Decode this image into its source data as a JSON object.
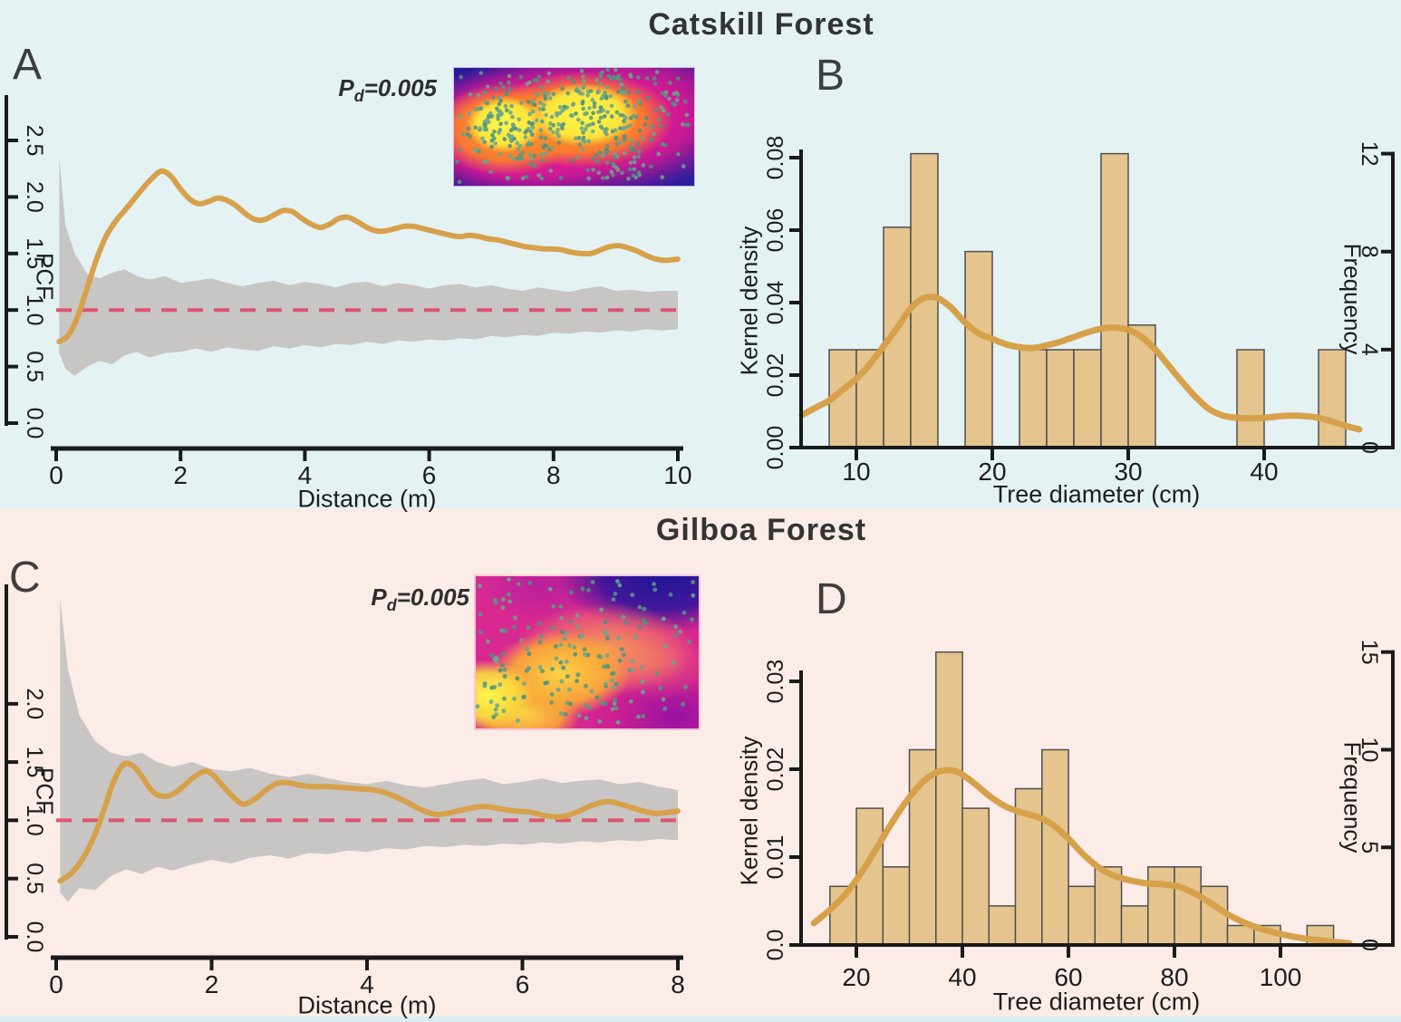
{
  "figure": {
    "top": {
      "title": "Catskill Forest",
      "bg": "#e4f2f4"
    },
    "bottom": {
      "title": "Gilboa Forest",
      "bg": "#fbece8"
    },
    "bottom_strip_color": "#d9eef3"
  },
  "colors": {
    "curve": "#d7a14b",
    "envelope": "#c7c6c4",
    "ref_line": "#dd5470",
    "bar_fill": "#e5c48e",
    "bar_stroke": "#4f4f4f",
    "axis": "#1a1a1a",
    "tick_text": "#1d1d1d",
    "inset_navy": "#1e1696",
    "inset_magenta": "#e0218f",
    "inset_orange": "#fb9b2e",
    "inset_yellow": "#fdf64c",
    "inset_yellow2": "#fce53c",
    "inset_purple": "#8a14a0",
    "inset_dots": [
      "#57987f",
      "#67a98e",
      "#4f8f80",
      "#6ba487"
    ]
  },
  "chart_data": [
    {
      "id": "A",
      "type": "line",
      "panel_label": "A",
      "forest": "Catskill Forest",
      "xlabel": "Distance (m)",
      "ylabel": "PCF",
      "xlim": [
        0,
        10
      ],
      "ylim": [
        0.0,
        2.5
      ],
      "xticks": [
        "0",
        "2",
        "4",
        "6",
        "8",
        "10"
      ],
      "xtick_values": [
        0,
        2,
        4,
        6,
        8,
        10
      ],
      "yticks": [
        "0.0",
        "0.5",
        "1.0",
        "1.5",
        "2.0",
        "2.5"
      ],
      "ytick_values": [
        0,
        0.5,
        1,
        1.5,
        2,
        2.5
      ],
      "reference_line_y": 1.0,
      "annotation": {
        "p": "P",
        "sub": "d",
        "value": "=0.005"
      },
      "pcf_curve": {
        "x": [
          0.05,
          0.2,
          0.35,
          0.5,
          0.65,
          0.8,
          0.95,
          1.1,
          1.25,
          1.4,
          1.55,
          1.7,
          1.85,
          2.0,
          2.15,
          2.3,
          2.45,
          2.6,
          2.75,
          2.9,
          3.05,
          3.2,
          3.35,
          3.5,
          3.65,
          3.8,
          3.95,
          4.1,
          4.25,
          4.4,
          4.55,
          4.7,
          4.85,
          5.0,
          5.15,
          5.3,
          5.45,
          5.6,
          5.75,
          5.9,
          6.05,
          6.2,
          6.35,
          6.5,
          6.65,
          6.8,
          6.95,
          7.1,
          7.25,
          7.4,
          7.55,
          7.7,
          7.85,
          8.0,
          8.15,
          8.3,
          8.45,
          8.6,
          8.75,
          8.9,
          9.05,
          9.2,
          9.35,
          9.5,
          9.65,
          9.8,
          10.0
        ],
        "y": [
          0.72,
          0.78,
          0.95,
          1.2,
          1.45,
          1.65,
          1.78,
          1.88,
          1.98,
          2.08,
          2.17,
          2.23,
          2.18,
          2.07,
          1.98,
          1.94,
          1.96,
          1.99,
          1.97,
          1.92,
          1.85,
          1.8,
          1.8,
          1.84,
          1.88,
          1.87,
          1.81,
          1.76,
          1.73,
          1.76,
          1.81,
          1.82,
          1.78,
          1.73,
          1.7,
          1.7,
          1.72,
          1.74,
          1.74,
          1.72,
          1.7,
          1.68,
          1.66,
          1.65,
          1.66,
          1.65,
          1.63,
          1.62,
          1.6,
          1.58,
          1.56,
          1.55,
          1.54,
          1.54,
          1.53,
          1.51,
          1.5,
          1.5,
          1.53,
          1.56,
          1.57,
          1.55,
          1.52,
          1.48,
          1.45,
          1.44,
          1.45
        ]
      },
      "envelope": {
        "x": [
          0.05,
          0.15,
          0.3,
          0.5,
          0.7,
          0.9,
          1.1,
          1.3,
          1.5,
          1.75,
          2.0,
          2.25,
          2.5,
          2.75,
          3.0,
          3.25,
          3.5,
          3.75,
          4.0,
          4.25,
          4.5,
          4.75,
          5.0,
          5.25,
          5.5,
          5.75,
          6.0,
          6.25,
          6.5,
          6.75,
          7.0,
          7.25,
          7.5,
          7.75,
          8.0,
          8.25,
          8.5,
          8.75,
          9.0,
          9.25,
          9.5,
          9.75,
          10.0
        ],
        "upper": [
          2.35,
          1.75,
          1.5,
          1.32,
          1.28,
          1.33,
          1.36,
          1.3,
          1.27,
          1.3,
          1.24,
          1.26,
          1.28,
          1.24,
          1.21,
          1.24,
          1.26,
          1.22,
          1.25,
          1.23,
          1.2,
          1.24,
          1.25,
          1.21,
          1.24,
          1.22,
          1.19,
          1.22,
          1.23,
          1.2,
          1.22,
          1.19,
          1.17,
          1.2,
          1.18,
          1.16,
          1.19,
          1.21,
          1.17,
          1.18,
          1.16,
          1.17,
          1.17
        ],
        "lower": [
          0.62,
          0.48,
          0.42,
          0.5,
          0.55,
          0.52,
          0.6,
          0.63,
          0.58,
          0.62,
          0.63,
          0.66,
          0.63,
          0.67,
          0.65,
          0.64,
          0.68,
          0.66,
          0.69,
          0.67,
          0.7,
          0.69,
          0.72,
          0.7,
          0.73,
          0.72,
          0.74,
          0.73,
          0.75,
          0.74,
          0.77,
          0.76,
          0.78,
          0.77,
          0.8,
          0.79,
          0.81,
          0.8,
          0.82,
          0.81,
          0.83,
          0.82,
          0.83
        ]
      },
      "inset": {
        "type": "point-density-map",
        "hotspots": "two yellow clusters left and center, navy background, magenta halo",
        "dot_color": "teal-green"
      }
    },
    {
      "id": "B",
      "type": "bar",
      "panel_label": "B",
      "forest": "Catskill Forest",
      "xlabel": "Tree diameter (cm)",
      "ylabel_left": "Kernel  density",
      "ylabel_right": "Frequency",
      "xlim": [
        6,
        47
      ],
      "ylim_density": [
        0.0,
        0.08
      ],
      "ylim_frequency": [
        0,
        12
      ],
      "xticks": [
        "10",
        "20",
        "30",
        "40"
      ],
      "xtick_values": [
        10,
        20,
        30,
        40
      ],
      "yticks_left": [
        "0.00",
        "0.02",
        "0.04",
        "0.06",
        "0.08"
      ],
      "ytick_left_values": [
        0,
        0.02,
        0.04,
        0.06,
        0.08
      ],
      "yticks_right": [
        "0",
        "4",
        "8",
        "12"
      ],
      "ytick_right_values": [
        0,
        4,
        8,
        12
      ],
      "histogram": {
        "bin_start": 8,
        "bin_width": 2,
        "frequencies": [
          4,
          4,
          9,
          12,
          0,
          8,
          0,
          4,
          4,
          4,
          12,
          5,
          0,
          0,
          0,
          4,
          0,
          0,
          4
        ],
        "densities": [
          0.027,
          0.027,
          0.0608,
          0.0811,
          0,
          0.0541,
          0,
          0.027,
          0.027,
          0.027,
          0.0811,
          0.0338,
          0,
          0,
          0,
          0.027,
          0,
          0,
          0.027
        ]
      },
      "kde_curve": {
        "x": [
          6,
          7,
          8,
          9,
          10,
          11,
          12,
          13,
          14,
          15,
          16,
          17,
          18,
          19,
          20,
          21,
          22,
          23,
          24,
          25,
          26,
          27,
          28,
          29,
          30,
          31,
          32,
          33,
          34,
          35,
          36,
          37,
          38,
          39,
          40,
          41,
          42,
          43,
          44,
          45,
          46,
          47
        ],
        "y": [
          0.009,
          0.011,
          0.013,
          0.016,
          0.019,
          0.023,
          0.028,
          0.033,
          0.0385,
          0.0413,
          0.0412,
          0.0385,
          0.0345,
          0.0315,
          0.03,
          0.0285,
          0.0277,
          0.0275,
          0.0282,
          0.0292,
          0.0305,
          0.0318,
          0.0328,
          0.0331,
          0.0325,
          0.0305,
          0.027,
          0.0225,
          0.018,
          0.0138,
          0.0105,
          0.0088,
          0.0082,
          0.0081,
          0.0082,
          0.0086,
          0.0088,
          0.0087,
          0.0082,
          0.0072,
          0.006,
          0.005
        ]
      }
    },
    {
      "id": "C",
      "type": "line",
      "panel_label": "C",
      "forest": "Gilboa Forest",
      "xlabel": "Distance (m)",
      "ylabel": "PCF",
      "xlim": [
        0,
        8
      ],
      "ylim": [
        0.0,
        2.0
      ],
      "xticks": [
        "0",
        "2",
        "4",
        "6",
        "8"
      ],
      "xtick_values": [
        0,
        2,
        4,
        6,
        8
      ],
      "yticks": [
        "0.0",
        "0.5",
        "1.0",
        "1.5",
        "2.0"
      ],
      "ytick_values": [
        0,
        0.5,
        1,
        1.5,
        2
      ],
      "reference_line_y": 1.0,
      "annotation": {
        "p": "P",
        "sub": "d",
        "value": "=0.005"
      },
      "pcf_curve": {
        "x": [
          0.05,
          0.2,
          0.35,
          0.5,
          0.62,
          0.72,
          0.82,
          0.9,
          1.0,
          1.1,
          1.2,
          1.3,
          1.45,
          1.6,
          1.75,
          1.9,
          2.0,
          2.1,
          2.25,
          2.4,
          2.55,
          2.7,
          2.85,
          3.0,
          3.15,
          3.3,
          3.5,
          3.7,
          3.9,
          4.1,
          4.3,
          4.5,
          4.7,
          4.9,
          5.1,
          5.3,
          5.5,
          5.7,
          5.9,
          6.1,
          6.3,
          6.5,
          6.7,
          6.9,
          7.1,
          7.3,
          7.5,
          7.7,
          7.9,
          8.0
        ],
        "y": [
          0.48,
          0.55,
          0.68,
          0.88,
          1.1,
          1.3,
          1.44,
          1.49,
          1.46,
          1.38,
          1.28,
          1.22,
          1.21,
          1.27,
          1.36,
          1.42,
          1.4,
          1.33,
          1.22,
          1.14,
          1.18,
          1.26,
          1.32,
          1.32,
          1.3,
          1.29,
          1.29,
          1.28,
          1.27,
          1.26,
          1.22,
          1.16,
          1.09,
          1.05,
          1.07,
          1.1,
          1.12,
          1.1,
          1.08,
          1.07,
          1.04,
          1.03,
          1.07,
          1.13,
          1.16,
          1.13,
          1.09,
          1.06,
          1.07,
          1.08
        ]
      },
      "envelope": {
        "x": [
          0.05,
          0.15,
          0.3,
          0.5,
          0.7,
          0.9,
          1.1,
          1.3,
          1.5,
          1.75,
          2.0,
          2.25,
          2.5,
          2.75,
          3.0,
          3.25,
          3.5,
          3.75,
          4.0,
          4.25,
          4.5,
          4.75,
          5.0,
          5.25,
          5.5,
          5.75,
          6.0,
          6.25,
          6.5,
          6.75,
          7.0,
          7.25,
          7.5,
          7.75,
          8.0
        ],
        "upper": [
          2.9,
          2.3,
          1.9,
          1.68,
          1.58,
          1.55,
          1.58,
          1.5,
          1.46,
          1.5,
          1.44,
          1.42,
          1.45,
          1.4,
          1.37,
          1.4,
          1.36,
          1.33,
          1.31,
          1.34,
          1.3,
          1.28,
          1.31,
          1.34,
          1.36,
          1.31,
          1.33,
          1.36,
          1.32,
          1.34,
          1.35,
          1.31,
          1.33,
          1.29,
          1.26
        ],
        "lower": [
          0.38,
          0.3,
          0.42,
          0.4,
          0.52,
          0.58,
          0.54,
          0.6,
          0.57,
          0.62,
          0.66,
          0.63,
          0.68,
          0.7,
          0.67,
          0.72,
          0.71,
          0.74,
          0.73,
          0.76,
          0.75,
          0.78,
          0.77,
          0.79,
          0.78,
          0.8,
          0.79,
          0.81,
          0.8,
          0.82,
          0.81,
          0.83,
          0.82,
          0.84,
          0.83
        ]
      },
      "inset": {
        "type": "point-density-map",
        "hotspots": "diagonal yellow-orange band lower-left to center-right, magenta field, navy top-right corner",
        "dot_color": "teal-green"
      }
    },
    {
      "id": "D",
      "type": "bar",
      "panel_label": "D",
      "forest": "Gilboa Forest",
      "xlabel": "Tree diameter (cm)",
      "ylabel_left": "Kernel  density",
      "ylabel_right": "Frequency",
      "xlim": [
        9,
        113
      ],
      "ylim_density": [
        0.0,
        0.033
      ],
      "ylim_frequency": [
        0,
        15
      ],
      "xticks": [
        "20",
        "40",
        "60",
        "80",
        "100"
      ],
      "xtick_values": [
        20,
        40,
        60,
        80,
        100
      ],
      "yticks_left": [
        "0.0",
        "0.01",
        "0.02",
        "0.03"
      ],
      "ytick_left_values": [
        0,
        0.01,
        0.02,
        0.03
      ],
      "yticks_right": [
        "0",
        "5",
        "10",
        "15"
      ],
      "ytick_right_values": [
        0,
        5,
        10,
        15
      ],
      "histogram": {
        "bin_start": 15,
        "bin_width": 5,
        "frequencies": [
          3,
          7,
          4,
          10,
          15,
          7,
          2,
          8,
          10,
          3,
          4,
          2,
          4,
          4,
          3,
          1,
          1,
          0,
          1
        ],
        "densities": [
          0.00667,
          0.01556,
          0.00889,
          0.02222,
          0.03333,
          0.01556,
          0.00444,
          0.01778,
          0.02222,
          0.00667,
          0.00889,
          0.00444,
          0.00889,
          0.00889,
          0.00667,
          0.00222,
          0.00222,
          0,
          0.00222
        ]
      },
      "kde_curve": {
        "x": [
          12,
          15,
          18,
          21,
          24,
          27,
          30,
          33,
          36,
          39,
          42,
          45,
          48,
          51,
          54,
          57,
          60,
          63,
          66,
          69,
          72,
          75,
          78,
          81,
          84,
          87,
          90,
          93,
          96,
          99,
          102,
          105,
          108,
          111,
          113
        ],
        "y": [
          0.0025,
          0.004,
          0.0058,
          0.0083,
          0.0112,
          0.0142,
          0.0168,
          0.0188,
          0.0198,
          0.0197,
          0.0185,
          0.017,
          0.0158,
          0.0151,
          0.0146,
          0.0137,
          0.0121,
          0.0102,
          0.0087,
          0.0078,
          0.0073,
          0.007,
          0.0069,
          0.0066,
          0.0058,
          0.0047,
          0.0035,
          0.0026,
          0.0019,
          0.0014,
          0.001,
          0.0007,
          0.0005,
          0.0003,
          0.0002
        ]
      }
    }
  ]
}
